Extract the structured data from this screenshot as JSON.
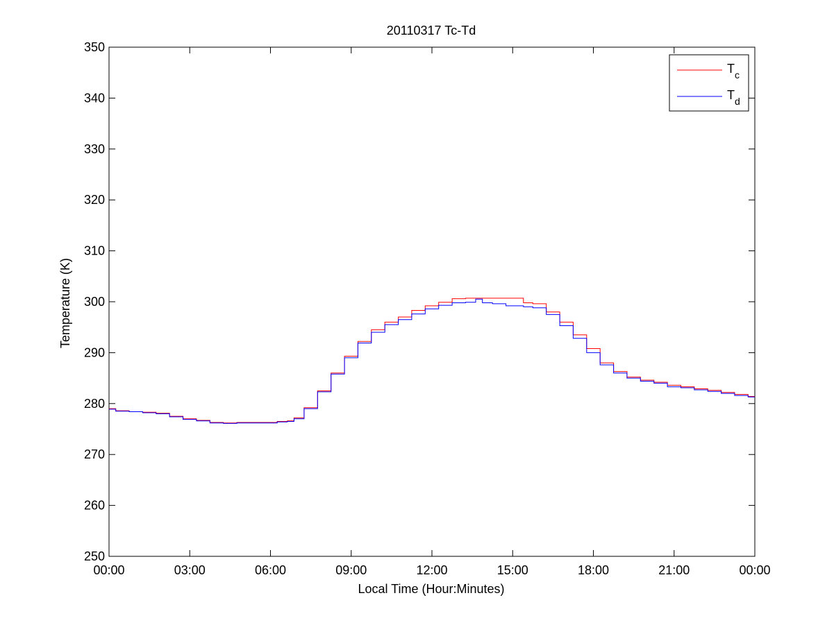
{
  "chart_data": {
    "type": "line",
    "title": "20110317 Tc-Td",
    "xlabel": "Local Time (Hour:Minutes)",
    "ylabel": "Temperature (K)",
    "xlim": [
      0,
      24
    ],
    "ylim": [
      250,
      350
    ],
    "x_ticks": [
      0,
      3,
      6,
      9,
      12,
      15,
      18,
      21,
      24
    ],
    "x_tick_labels": [
      "00:00",
      "03:00",
      "06:00",
      "09:00",
      "12:00",
      "15:00",
      "18:00",
      "21:00",
      "00:00"
    ],
    "y_ticks": [
      250,
      260,
      270,
      280,
      290,
      300,
      310,
      320,
      330,
      340,
      350
    ],
    "y_tick_labels": [
      "250",
      "260",
      "270",
      "280",
      "290",
      "300",
      "310",
      "320",
      "330",
      "340",
      "350"
    ],
    "grid": false,
    "legend_position": "top-right",
    "series": [
      {
        "name": "T",
        "subscript": "c",
        "color": "#ff0000",
        "x": [
          0,
          0.5,
          1,
          1.5,
          2,
          2.5,
          3,
          3.5,
          4,
          4.5,
          5,
          5.5,
          6,
          6.5,
          6.75,
          7,
          7.5,
          8,
          8.5,
          9,
          9.5,
          10,
          10.5,
          11,
          11.5,
          12,
          12.5,
          13,
          13.5,
          14,
          14.5,
          15,
          15.3,
          15.5,
          16,
          16.5,
          17,
          17.5,
          18,
          18.5,
          19,
          19.5,
          20,
          20.5,
          21,
          21.5,
          22,
          22.5,
          23,
          23.5,
          24
        ],
        "y": [
          279.0,
          278.6,
          278.4,
          278.3,
          278.1,
          277.5,
          277.0,
          276.7,
          276.3,
          276.2,
          276.3,
          276.3,
          276.3,
          276.5,
          276.6,
          277.2,
          279.2,
          282.5,
          286.0,
          289.3,
          292.2,
          294.5,
          296.0,
          297.0,
          298.3,
          299.2,
          299.9,
          300.6,
          300.7,
          300.7,
          300.7,
          300.7,
          300.7,
          299.8,
          299.6,
          298.0,
          296.0,
          293.5,
          290.8,
          288.0,
          286.3,
          285.2,
          284.6,
          284.2,
          283.6,
          283.3,
          282.9,
          282.6,
          282.2,
          281.8,
          281.4
        ]
      },
      {
        "name": "T",
        "subscript": "d",
        "color": "#0000ff",
        "x": [
          0,
          0.5,
          1,
          1.5,
          2,
          2.5,
          3,
          3.5,
          4,
          4.5,
          5,
          5.5,
          6,
          6.5,
          6.75,
          7,
          7.5,
          8,
          8.5,
          9,
          9.5,
          10,
          10.5,
          11,
          11.5,
          12,
          12.5,
          13,
          13.5,
          13.75,
          14,
          14.5,
          15,
          15.3,
          15.5,
          16,
          16.5,
          17,
          17.5,
          18,
          18.5,
          19,
          19.5,
          20,
          20.5,
          21,
          21.5,
          22,
          22.5,
          23,
          23.5,
          24
        ],
        "y": [
          278.9,
          278.5,
          278.4,
          278.2,
          278.0,
          277.4,
          276.9,
          276.6,
          276.2,
          276.1,
          276.2,
          276.2,
          276.2,
          276.4,
          276.5,
          277.0,
          279.0,
          282.3,
          285.8,
          289.0,
          291.9,
          294.0,
          295.5,
          296.5,
          297.6,
          298.6,
          299.3,
          299.8,
          299.9,
          300.5,
          299.8,
          299.6,
          299.2,
          299.2,
          299.0,
          298.8,
          297.5,
          295.3,
          292.8,
          290.0,
          287.6,
          286.0,
          285.0,
          284.4,
          284.0,
          283.3,
          283.1,
          282.7,
          282.4,
          282.0,
          281.6,
          281.3
        ]
      }
    ]
  }
}
